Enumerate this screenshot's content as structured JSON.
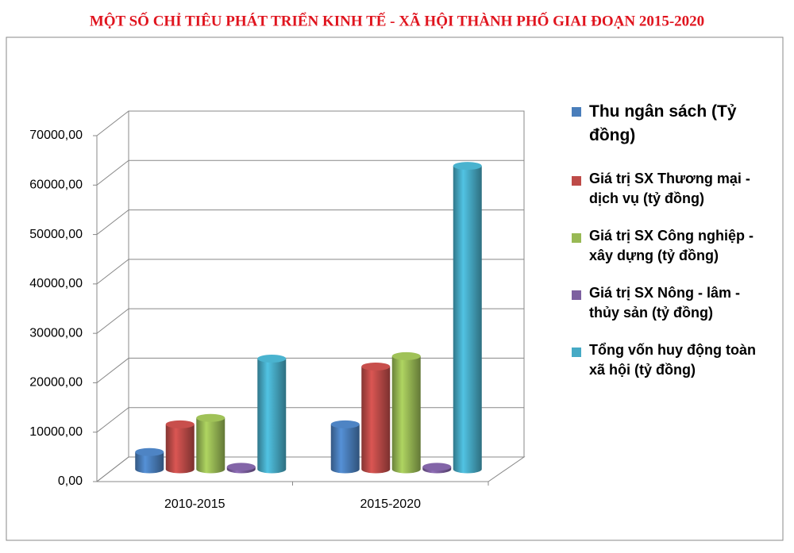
{
  "chart_data": {
    "type": "bar3d",
    "title": "MỘT SỐ CHỈ TIÊU PHÁT TRIỂN KINH TẾ - XÃ HỘI THÀNH PHỐ GIAI ĐOẠN 2015-2020",
    "categories": [
      "2010-2015",
      "2015-2020"
    ],
    "series": [
      {
        "name": "Thu ngân sách (Tỷ đồng)",
        "color": "#4a7ebb",
        "values": [
          3500,
          9100
        ]
      },
      {
        "name": "Giá trị SX Thương mại - dịch vụ (tỷ đồng)",
        "color": "#be4b48",
        "values": [
          9100,
          20800
        ]
      },
      {
        "name": "Giá trị SX Công nghiệp - xây dựng (tỷ đồng)",
        "color": "#98b954",
        "values": [
          10400,
          22900
        ]
      },
      {
        "name": "Giá trị SX Nông - lâm - thủy sản (tỷ đồng)",
        "color": "#7d60a0",
        "values": [
          500,
          500
        ]
      },
      {
        "name": "Tổng vốn huy động toàn xã hội (tỷ đồng)",
        "color": "#46aac5",
        "values": [
          22400,
          61400
        ]
      }
    ],
    "ylim": [
      0,
      70000
    ],
    "yticks": [
      {
        "value": 0,
        "label": "0,00"
      },
      {
        "value": 10000,
        "label": "10000,00"
      },
      {
        "value": 20000,
        "label": "20000,00"
      },
      {
        "value": 30000,
        "label": "30000,00"
      },
      {
        "value": 40000,
        "label": "40000,00"
      },
      {
        "value": 50000,
        "label": "50000,00"
      },
      {
        "value": 60000,
        "label": "60000,00"
      },
      {
        "value": 70000,
        "label": "70000,00"
      }
    ],
    "grid": true
  }
}
